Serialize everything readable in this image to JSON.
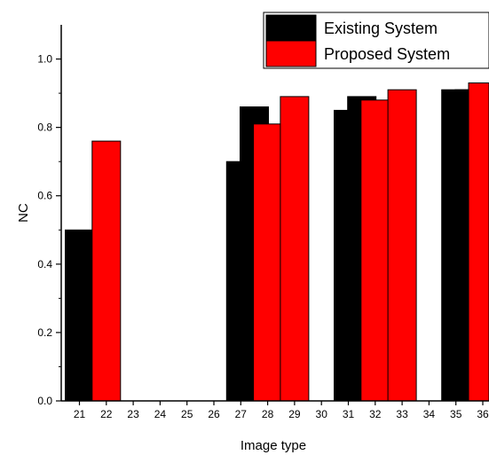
{
  "chart_data": {
    "type": "bar",
    "xlabel": "Image type",
    "ylabel": "NC",
    "ylim": [
      0,
      1.1
    ],
    "yticks": [
      "0.0",
      "0.2",
      "0.4",
      "0.6",
      "0.8",
      "1.0"
    ],
    "categories": [
      "21",
      "22",
      "23",
      "24",
      "25",
      "26",
      "27",
      "28",
      "29",
      "30",
      "31",
      "32",
      "33",
      "34",
      "35",
      "36"
    ],
    "series": [
      {
        "name": "Existing System",
        "color": "#000000",
        "points": [
          {
            "x": 21,
            "value": 0.5
          },
          {
            "x": 27,
            "value": 0.7
          },
          {
            "x": 27.5,
            "value": 0.86
          },
          {
            "x": 31,
            "value": 0.85
          },
          {
            "x": 31.5,
            "value": 0.89
          },
          {
            "x": 35,
            "value": 0.91
          },
          {
            "x": 35.5,
            "value": 0.91
          }
        ]
      },
      {
        "name": "Proposed System",
        "color": "#ff0000",
        "points": [
          {
            "x": 22,
            "value": 0.76
          },
          {
            "x": 28,
            "value": 0.81
          },
          {
            "x": 29,
            "value": 0.89
          },
          {
            "x": 32,
            "value": 0.88
          },
          {
            "x": 33,
            "value": 0.91
          },
          {
            "x": 36,
            "value": 0.93
          }
        ]
      }
    ],
    "grid": false,
    "legend_position": "top-right"
  }
}
